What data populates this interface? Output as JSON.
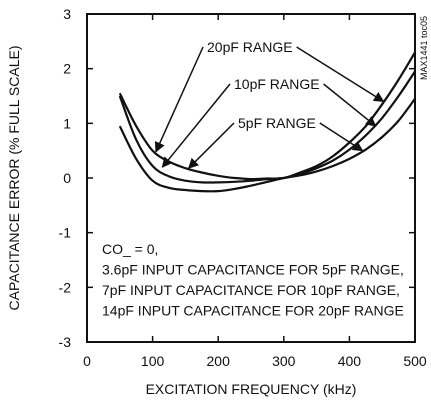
{
  "chart_data": {
    "type": "line",
    "xlabel": "EXCITATION FREQUENCY (kHz)",
    "ylabel": "CAPACITANCE ERROR (% FULL SCALE)",
    "xlim": [
      0,
      500
    ],
    "ylim": [
      -3,
      3
    ],
    "xticks": [
      0,
      100,
      200,
      300,
      400,
      500
    ],
    "yticks": [
      -3,
      -2,
      -1,
      0,
      1,
      2,
      3
    ],
    "grid": false,
    "watermark": "MAX1441 toc05",
    "series": [
      {
        "name": "20pF RANGE",
        "x": [
          50,
          75,
          100,
          125,
          150,
          175,
          200,
          225,
          250,
          275,
          300,
          325,
          350,
          375,
          400,
          425,
          450,
          475,
          500
        ],
        "y": [
          1.55,
          0.95,
          0.5,
          0.3,
          0.18,
          0.1,
          0.04,
          0.0,
          -0.02,
          -0.01,
          0.0,
          0.1,
          0.22,
          0.4,
          0.65,
          0.95,
          1.35,
          1.8,
          2.3
        ]
      },
      {
        "name": "10pF RANGE",
        "x": [
          50,
          75,
          100,
          125,
          150,
          175,
          200,
          225,
          250,
          275,
          300,
          325,
          350,
          375,
          400,
          425,
          450,
          475,
          500
        ],
        "y": [
          1.5,
          0.7,
          0.22,
          0.03,
          -0.05,
          -0.08,
          -0.08,
          -0.07,
          -0.05,
          -0.02,
          0.0,
          0.07,
          0.18,
          0.32,
          0.52,
          0.78,
          1.1,
          1.5,
          1.95
        ]
      },
      {
        "name": "5pF RANGE",
        "x": [
          50,
          75,
          100,
          125,
          150,
          175,
          200,
          225,
          250,
          275,
          300,
          325,
          350,
          375,
          400,
          425,
          450,
          475,
          500
        ],
        "y": [
          0.95,
          0.35,
          -0.05,
          -0.18,
          -0.22,
          -0.24,
          -0.24,
          -0.2,
          -0.14,
          -0.07,
          0.0,
          0.05,
          0.12,
          0.22,
          0.35,
          0.52,
          0.75,
          1.05,
          1.45
        ]
      }
    ],
    "annotation_lines": [
      "CO_ = 0,",
      "3.6pF INPUT CAPACITANCE FOR 5pF RANGE,",
      "7pF INPUT CAPACITANCE FOR 10pF RANGE,",
      "14pF INPUT CAPACITANCE FOR 20pF RANGE"
    ]
  }
}
